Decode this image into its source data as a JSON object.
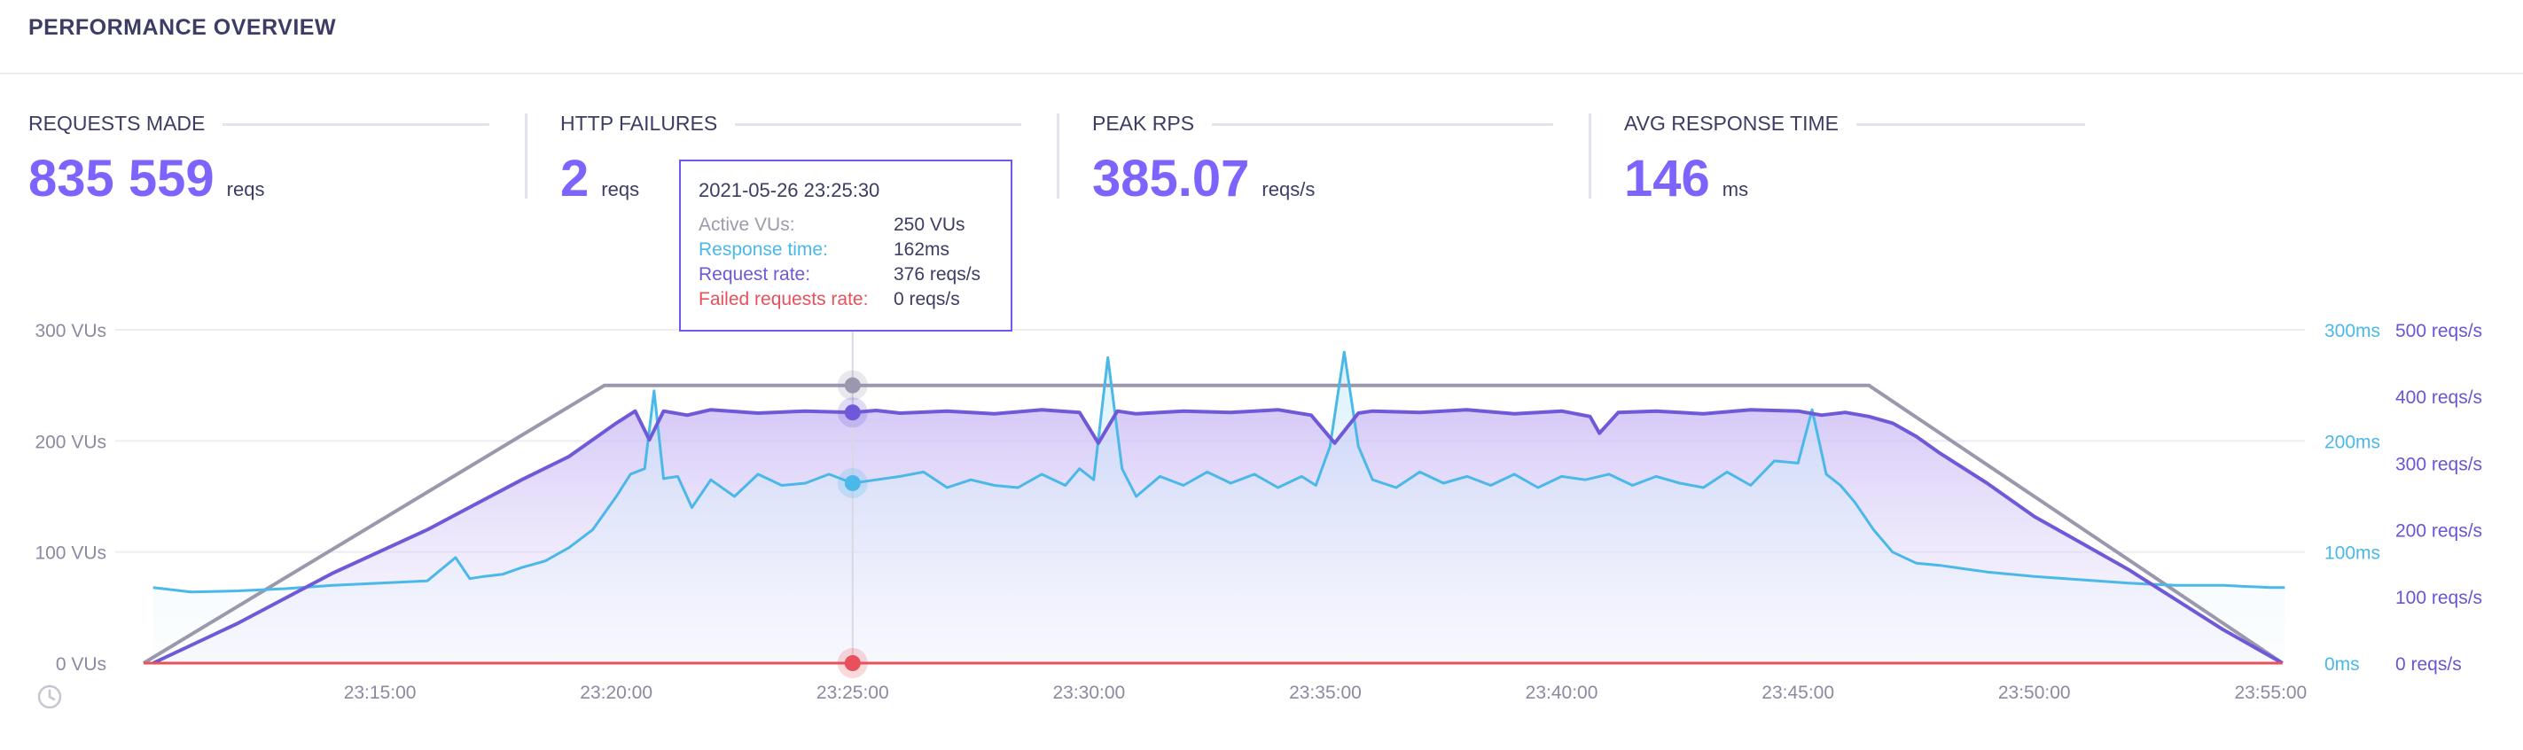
{
  "header": {
    "title": "PERFORMANCE OVERVIEW"
  },
  "stats": [
    {
      "label": "REQUESTS MADE",
      "value": "835 559",
      "unit": "reqs"
    },
    {
      "label": "HTTP FAILURES",
      "value": "2",
      "unit": "reqs"
    },
    {
      "label": "PEAK RPS",
      "value": "385.07",
      "unit": "reqs/s"
    },
    {
      "label": "AVG RESPONSE TIME",
      "value": "146",
      "unit": "ms"
    }
  ],
  "tooltip": {
    "date": "2021-05-26 23:25:30",
    "rows": [
      {
        "label": "Active VUs:",
        "value": "250 VUs",
        "color": "#9b9bab"
      },
      {
        "label": "Response time:",
        "value": "162ms",
        "color": "#4ab8e8"
      },
      {
        "label": "Request rate:",
        "value": "376 reqs/s",
        "color": "#7059d8"
      },
      {
        "label": "Failed requests rate:",
        "value": "0 reqs/s",
        "color": "#e8505b"
      }
    ]
  },
  "colors": {
    "accent": "#7d64ff",
    "vus": "#9b97ad",
    "response_time": "#4ab8e8",
    "request_rate": "#7059d8",
    "failed": "#e8505b"
  },
  "chart_data": {
    "type": "line",
    "x_ticks": [
      "23:15:00",
      "23:20:00",
      "23:25:00",
      "23:30:00",
      "23:35:00",
      "23:40:00",
      "23:45:00",
      "23:50:00",
      "23:55:00"
    ],
    "y_left_ticks": [
      "300 VUs",
      "200 VUs",
      "100 VUs",
      "0 VUs"
    ],
    "y_right_ms_ticks": [
      "300ms",
      "200ms",
      "100ms",
      "0ms"
    ],
    "y_right_rps_ticks": [
      "500 reqs/s",
      "400 reqs/s",
      "300 reqs/s",
      "200 reqs/s",
      "100 reqs/s",
      "0 reqs/s"
    ],
    "ylim_vus": [
      0,
      300
    ],
    "ylim_ms": [
      0,
      300
    ],
    "ylim_rps": [
      0,
      500
    ],
    "xlim_minutes": [
      10.0,
      55.5
    ],
    "series": [
      {
        "name": "Active VUs",
        "x_min": [
          10.0,
          19.75,
          46.5,
          55.25
        ],
        "values": [
          0,
          250,
          250,
          0
        ]
      },
      {
        "name": "Response time",
        "x_min": [
          10.2,
          11.0,
          12.0,
          13.0,
          14.0,
          15.0,
          16.0,
          16.6,
          16.9,
          17.2,
          17.6,
          18.0,
          18.5,
          19.0,
          19.5,
          20.0,
          20.3,
          20.6,
          20.8,
          21.0,
          21.3,
          21.6,
          22.0,
          22.5,
          23.0,
          23.5,
          24.0,
          24.5,
          25.0,
          25.5,
          26.0,
          26.5,
          27.0,
          27.5,
          28.0,
          28.5,
          29.0,
          29.5,
          29.8,
          30.1,
          30.4,
          30.7,
          31.0,
          31.5,
          32.0,
          32.5,
          33.0,
          33.5,
          34.0,
          34.5,
          34.8,
          35.1,
          35.4,
          35.7,
          36.0,
          36.5,
          37.0,
          37.5,
          38.0,
          38.5,
          39.0,
          39.5,
          40.0,
          40.5,
          41.0,
          41.5,
          42.0,
          42.5,
          43.0,
          43.5,
          44.0,
          44.5,
          45.0,
          45.3,
          45.6,
          45.9,
          46.2,
          46.6,
          47.0,
          47.5,
          48.0,
          48.5,
          49.0,
          50.0,
          51.0,
          52.0,
          53.0,
          54.0,
          55.0,
          55.3
        ],
        "values": [
          68,
          64,
          65,
          67,
          70,
          72,
          74,
          95,
          76,
          78,
          80,
          86,
          92,
          104,
          120,
          150,
          170,
          175,
          245,
          166,
          168,
          140,
          165,
          150,
          170,
          160,
          162,
          170,
          162,
          165,
          168,
          172,
          158,
          165,
          160,
          158,
          170,
          160,
          175,
          165,
          275,
          175,
          150,
          168,
          160,
          172,
          162,
          170,
          158,
          168,
          160,
          195,
          280,
          195,
          165,
          158,
          172,
          162,
          168,
          160,
          170,
          158,
          168,
          165,
          170,
          160,
          168,
          162,
          158,
          172,
          160,
          182,
          180,
          228,
          170,
          160,
          145,
          120,
          100,
          90,
          88,
          85,
          82,
          78,
          75,
          72,
          70,
          70,
          68,
          68
        ]
      },
      {
        "name": "Request rate",
        "x_min": [
          10.2,
          12.0,
          14.0,
          16.0,
          18.0,
          19.0,
          20.0,
          20.4,
          20.7,
          21.0,
          21.5,
          22.0,
          23.0,
          24.0,
          25.0,
          25.5,
          26.0,
          27.0,
          28.0,
          29.0,
          29.8,
          30.2,
          30.6,
          31.0,
          32.0,
          33.0,
          34.0,
          34.7,
          35.2,
          35.7,
          36.0,
          37.0,
          38.0,
          39.0,
          40.0,
          40.6,
          40.8,
          41.2,
          42.0,
          43.0,
          44.0,
          45.0,
          45.5,
          46.0,
          46.5,
          47.0,
          47.5,
          48.0,
          49.0,
          50.0,
          51.0,
          52.0,
          53.0,
          54.0,
          55.25
        ],
        "values": [
          0,
          60,
          135,
          200,
          275,
          310,
          360,
          378,
          335,
          378,
          372,
          380,
          375,
          378,
          376,
          379,
          375,
          378,
          374,
          380,
          376,
          330,
          378,
          374,
          378,
          376,
          380,
          372,
          330,
          375,
          378,
          376,
          380,
          374,
          378,
          370,
          345,
          376,
          378,
          374,
          380,
          378,
          372,
          376,
          370,
          360,
          340,
          315,
          270,
          220,
          180,
          140,
          95,
          50,
          0
        ]
      },
      {
        "name": "Failed requests rate",
        "x_min": [
          10.0,
          55.25
        ],
        "values": [
          0,
          0
        ]
      }
    ],
    "cursor_x_min": 25.0
  }
}
